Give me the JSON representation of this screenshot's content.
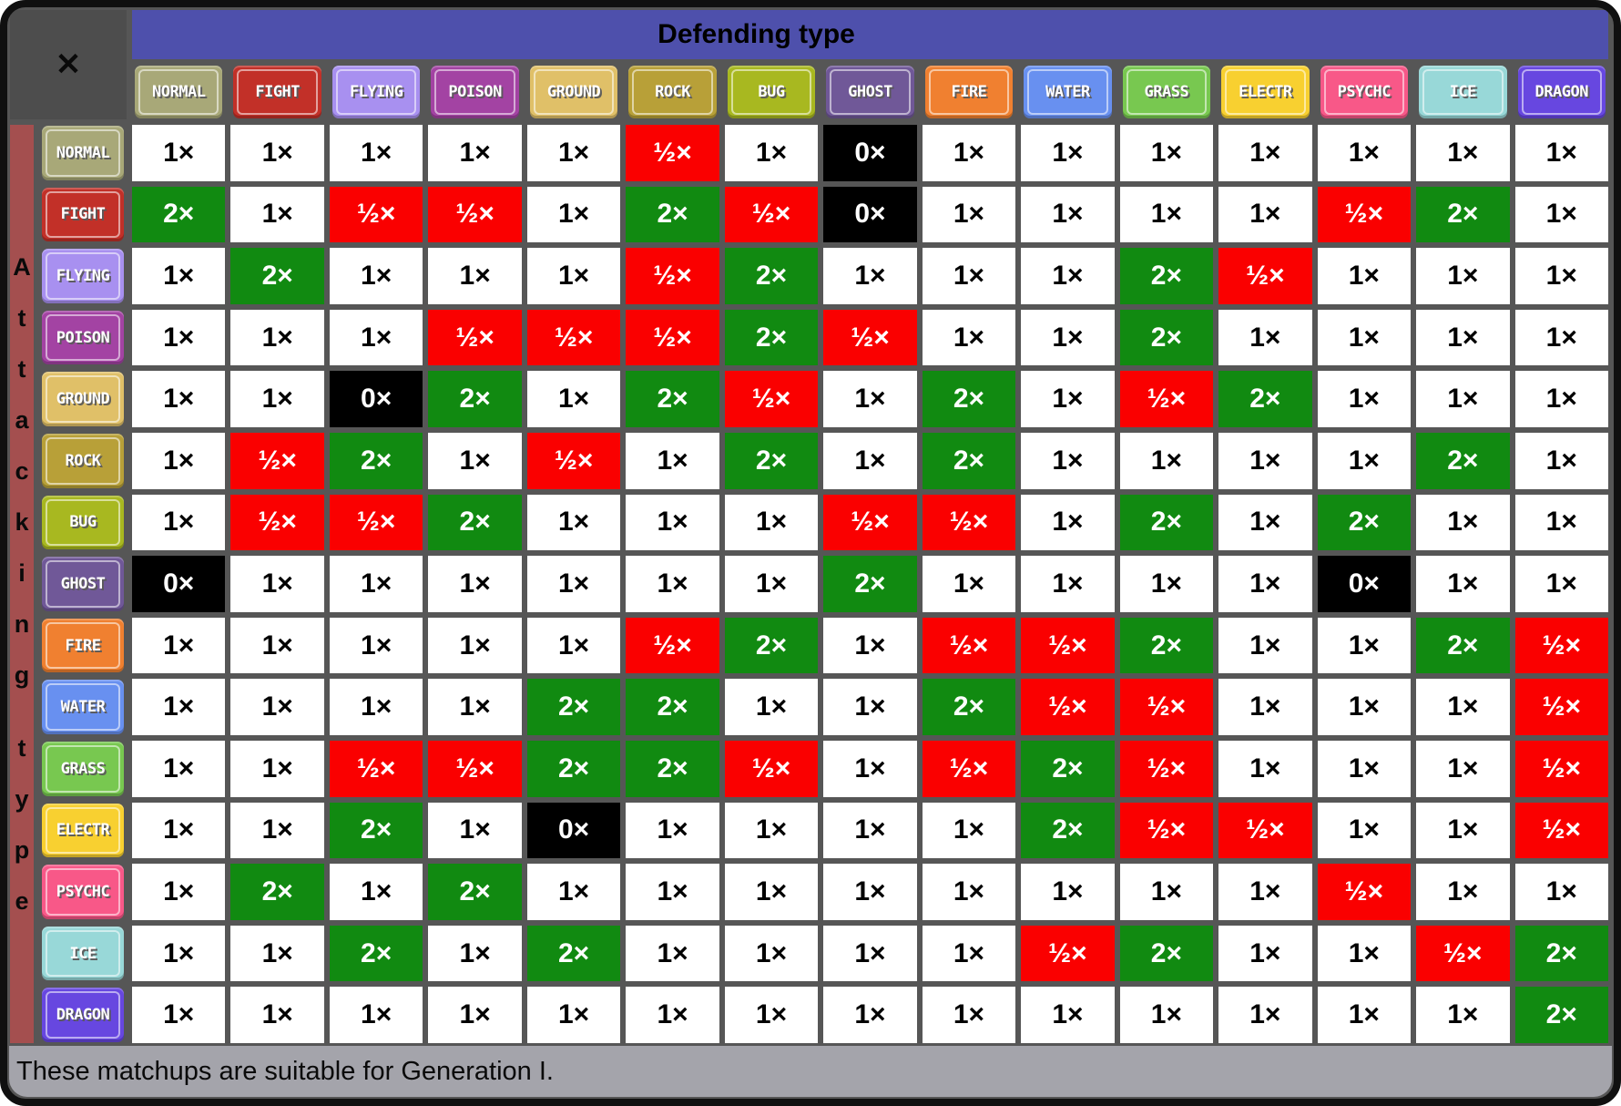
{
  "window": {
    "close_button": "✕"
  },
  "axis": {
    "defending": "Defending type",
    "attacking": "Attacking type"
  },
  "caption": "These matchups are suitable for Generation I.",
  "multiplier_labels": {
    "1": "1×",
    "2": "2×",
    "0.5": "½×",
    "0": "0×"
  },
  "colors": {
    "header_bar": "#4e50ac",
    "frame": "#4d4d4d",
    "grid_lines": "#565656",
    "attacking_strip": "#a44f4f",
    "caption_bar": "#a4a4ab",
    "effectiveness": {
      "neutral": "#ffffff",
      "super": "#118a11",
      "not_very": "#fa0000",
      "immune": "#000000"
    }
  },
  "types": [
    {
      "name": "NORMAL",
      "color": "#A8A878"
    },
    {
      "name": "FIGHT",
      "color": "#C23028"
    },
    {
      "name": "FLYING",
      "color": "#A890F0"
    },
    {
      "name": "POISON",
      "color": "#A343A3"
    },
    {
      "name": "GROUND",
      "color": "#E0C068"
    },
    {
      "name": "ROCK",
      "color": "#B8A038"
    },
    {
      "name": "BUG",
      "color": "#A8B820"
    },
    {
      "name": "GHOST",
      "color": "#705898"
    },
    {
      "name": "FIRE",
      "color": "#F08030"
    },
    {
      "name": "WATER",
      "color": "#6890F0"
    },
    {
      "name": "GRASS",
      "color": "#78C850"
    },
    {
      "name": "ELECTR",
      "color": "#F8D030"
    },
    {
      "name": "PSYCHC",
      "color": "#F85888"
    },
    {
      "name": "ICE",
      "color": "#98D8D8"
    },
    {
      "name": "DRAGON",
      "color": "#6747E0"
    }
  ],
  "chart_data": {
    "type": "heatmap",
    "xlabel": "Defending type",
    "ylabel": "Attacking type",
    "annotation": "These matchups are suitable for Generation I.",
    "columns": [
      "NORMAL",
      "FIGHT",
      "FLYING",
      "POISON",
      "GROUND",
      "ROCK",
      "BUG",
      "GHOST",
      "FIRE",
      "WATER",
      "GRASS",
      "ELECTR",
      "PSYCHC",
      "ICE",
      "DRAGON"
    ],
    "rows": [
      "NORMAL",
      "FIGHT",
      "FLYING",
      "POISON",
      "GROUND",
      "ROCK",
      "BUG",
      "GHOST",
      "FIRE",
      "WATER",
      "GRASS",
      "ELECTR",
      "PSYCHC",
      "ICE",
      "DRAGON"
    ],
    "values": [
      [
        1,
        1,
        1,
        1,
        1,
        0.5,
        1,
        0,
        1,
        1,
        1,
        1,
        1,
        1,
        1
      ],
      [
        2,
        1,
        0.5,
        0.5,
        1,
        2,
        0.5,
        0,
        1,
        1,
        1,
        1,
        0.5,
        2,
        1
      ],
      [
        1,
        2,
        1,
        1,
        1,
        0.5,
        2,
        1,
        1,
        1,
        2,
        0.5,
        1,
        1,
        1
      ],
      [
        1,
        1,
        1,
        0.5,
        0.5,
        0.5,
        2,
        0.5,
        1,
        1,
        2,
        1,
        1,
        1,
        1
      ],
      [
        1,
        1,
        0,
        2,
        1,
        2,
        0.5,
        1,
        2,
        1,
        0.5,
        2,
        1,
        1,
        1
      ],
      [
        1,
        0.5,
        2,
        1,
        0.5,
        1,
        2,
        1,
        2,
        1,
        1,
        1,
        1,
        2,
        1
      ],
      [
        1,
        0.5,
        0.5,
        2,
        1,
        1,
        1,
        0.5,
        0.5,
        1,
        2,
        1,
        2,
        1,
        1
      ],
      [
        0,
        1,
        1,
        1,
        1,
        1,
        1,
        2,
        1,
        1,
        1,
        1,
        0,
        1,
        1
      ],
      [
        1,
        1,
        1,
        1,
        1,
        0.5,
        2,
        1,
        0.5,
        0.5,
        2,
        1,
        1,
        2,
        0.5
      ],
      [
        1,
        1,
        1,
        1,
        2,
        2,
        1,
        1,
        2,
        0.5,
        0.5,
        1,
        1,
        1,
        0.5
      ],
      [
        1,
        1,
        0.5,
        0.5,
        2,
        2,
        0.5,
        1,
        0.5,
        2,
        0.5,
        1,
        1,
        1,
        0.5
      ],
      [
        1,
        1,
        2,
        1,
        0,
        1,
        1,
        1,
        1,
        2,
        0.5,
        0.5,
        1,
        1,
        0.5
      ],
      [
        1,
        2,
        1,
        2,
        1,
        1,
        1,
        1,
        1,
        1,
        1,
        1,
        0.5,
        1,
        1
      ],
      [
        1,
        1,
        2,
        1,
        2,
        1,
        1,
        1,
        1,
        0.5,
        2,
        1,
        1,
        0.5,
        2
      ],
      [
        1,
        1,
        1,
        1,
        1,
        1,
        1,
        1,
        1,
        1,
        1,
        1,
        1,
        1,
        2
      ]
    ]
  }
}
